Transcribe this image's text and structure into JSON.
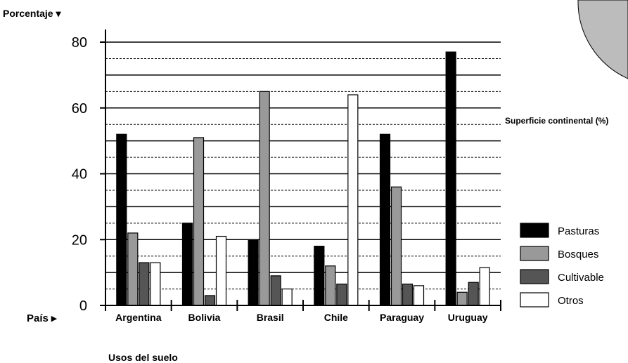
{
  "chart_data": {
    "type": "bar",
    "title": "",
    "ylabel": "Porcentaje ▾",
    "xlabel": "País ▸",
    "bottom_note": "Usos del suelo",
    "side_note": "Superficie continental (%)",
    "ylim": [
      0,
      80
    ],
    "yticks": [
      0,
      20,
      40,
      60,
      80
    ],
    "grid": true,
    "legend_position": "right",
    "categories": [
      "Argentina",
      "Bolivia",
      "Brasil",
      "Chile",
      "Paraguay",
      "Uruguay"
    ],
    "series": [
      {
        "name": "Pasturas",
        "color": "#000000",
        "values": [
          52,
          25,
          20,
          18,
          52,
          77
        ]
      },
      {
        "name": "Bosques",
        "color": "#999999",
        "values": [
          22,
          51,
          65,
          12,
          36,
          4
        ]
      },
      {
        "name": "Cultivable",
        "color": "#555555",
        "values": [
          13,
          3,
          9,
          6.5,
          6.5,
          7
        ]
      },
      {
        "name": "Otros",
        "color": "#ffffff",
        "values": [
          13,
          21,
          5,
          64,
          6,
          11.5
        ]
      }
    ]
  }
}
